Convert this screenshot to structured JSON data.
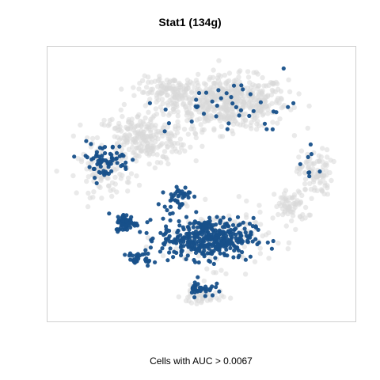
{
  "chart_data": {
    "type": "scatter",
    "title": "Stat1 (134g)",
    "caption": "Cells with AUC > 0.0067",
    "xlabel": "",
    "ylabel": "",
    "grid": false,
    "axes_visible": false,
    "series": [
      {
        "role": "below-threshold",
        "color": "#d9d9d9",
        "opacity": 0.55,
        "clusters": [
          {
            "cx": 0.6,
            "cy": 0.82,
            "sx": 0.17,
            "sy": 0.09,
            "n": 520
          },
          {
            "cx": 0.3,
            "cy": 0.68,
            "sx": 0.14,
            "sy": 0.09,
            "n": 260
          },
          {
            "cx": 0.88,
            "cy": 0.55,
            "sx": 0.05,
            "sy": 0.08,
            "n": 90
          },
          {
            "cx": 0.8,
            "cy": 0.42,
            "sx": 0.05,
            "sy": 0.06,
            "n": 70
          },
          {
            "cx": 0.4,
            "cy": 0.86,
            "sx": 0.1,
            "sy": 0.05,
            "n": 130
          },
          {
            "cx": 0.18,
            "cy": 0.55,
            "sx": 0.08,
            "sy": 0.08,
            "n": 90
          },
          {
            "cx": 0.55,
            "cy": 0.3,
            "sx": 0.16,
            "sy": 0.1,
            "n": 160
          },
          {
            "cx": 0.5,
            "cy": 0.08,
            "sx": 0.06,
            "sy": 0.04,
            "n": 50
          }
        ]
      },
      {
        "role": "above-threshold",
        "color": "#17508a",
        "opacity": 0.95,
        "clusters": [
          {
            "cx": 0.52,
            "cy": 0.3,
            "sx": 0.14,
            "sy": 0.07,
            "n": 400
          },
          {
            "cx": 0.25,
            "cy": 0.36,
            "sx": 0.03,
            "sy": 0.03,
            "n": 70
          },
          {
            "cx": 0.5,
            "cy": 0.11,
            "sx": 0.04,
            "sy": 0.03,
            "n": 35
          },
          {
            "cx": 0.18,
            "cy": 0.6,
            "sx": 0.08,
            "sy": 0.06,
            "n": 70
          },
          {
            "cx": 0.42,
            "cy": 0.46,
            "sx": 0.04,
            "sy": 0.04,
            "n": 40
          },
          {
            "cx": 0.3,
            "cy": 0.22,
            "sx": 0.04,
            "sy": 0.02,
            "n": 25
          },
          {
            "cx": 0.6,
            "cy": 0.8,
            "sx": 0.2,
            "sy": 0.1,
            "n": 40
          },
          {
            "cx": 0.85,
            "cy": 0.58,
            "sx": 0.05,
            "sy": 0.07,
            "n": 8
          }
        ]
      }
    ]
  }
}
